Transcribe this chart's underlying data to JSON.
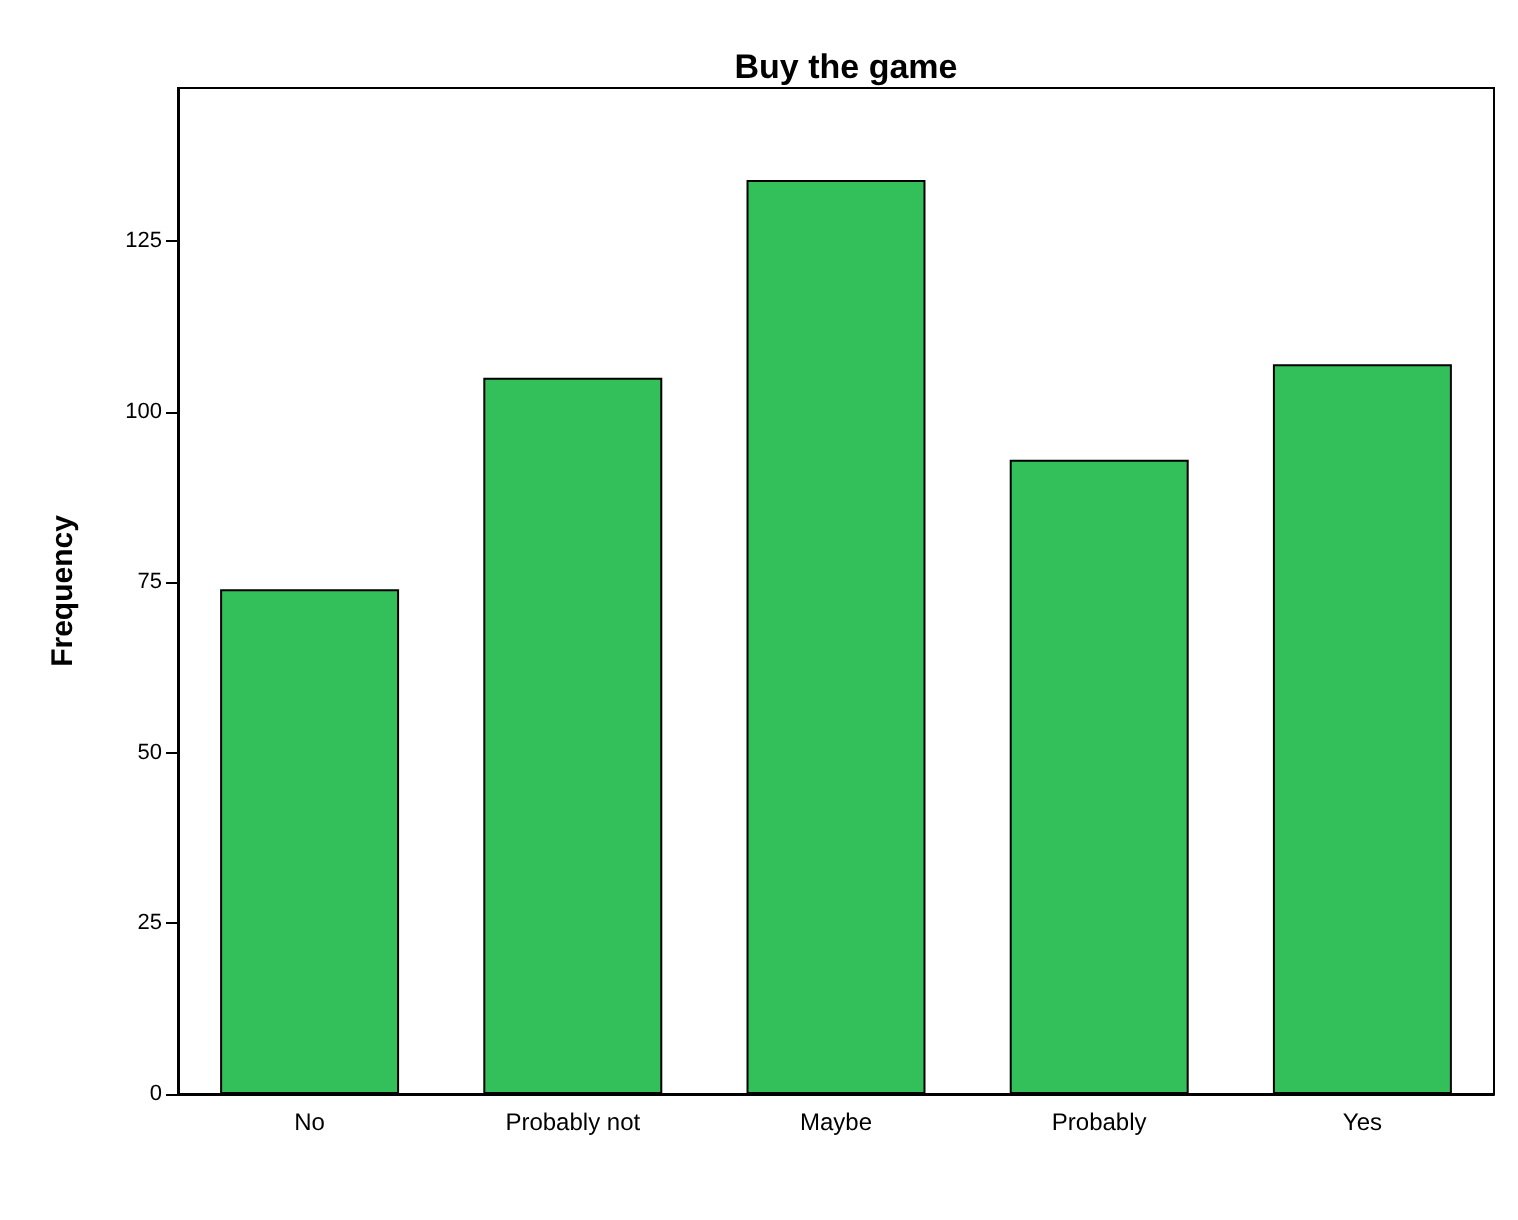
{
  "chart_data": {
    "type": "bar",
    "title": "Buy the game",
    "ylabel": "Frequency",
    "categories": [
      "No",
      "Probably not",
      "Maybe",
      "Probably",
      "Yes"
    ],
    "values": [
      74,
      105,
      134,
      93,
      107
    ],
    "color": "#33bf5a",
    "ylim": [
      0,
      147.5
    ],
    "yticks": [
      0,
      25,
      50,
      75,
      100,
      125
    ],
    "grid": false
  }
}
